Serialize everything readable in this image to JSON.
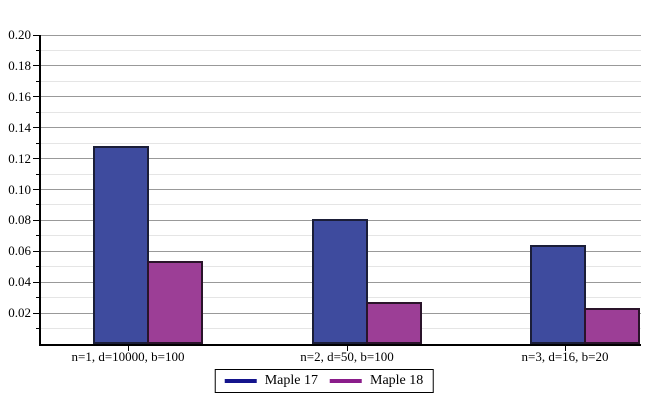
{
  "chart_data": {
    "type": "bar",
    "title": "",
    "xlabel": "",
    "ylabel": "",
    "categories": [
      "n=1, d=10000, b=100",
      "n=2, d=50, b=100",
      "n=3, d=16, b=20"
    ],
    "series": [
      {
        "name": "Maple 17",
        "values": [
          0.128,
          0.081,
          0.064
        ],
        "fill_color": "#3e4b9e",
        "edge_color": "#1b1e38",
        "legend_color": "#14148c"
      },
      {
        "name": "Maple 18",
        "values": [
          0.054,
          0.027,
          0.023
        ],
        "fill_color": "#9c3e96",
        "edge_color": "#2a142a",
        "legend_color": "#8a1d8a"
      }
    ],
    "ylim": [
      0,
      0.2
    ],
    "y_major_step": 0.02,
    "y_minor_step": 0.01,
    "y_tick_labels": [
      "0.02",
      "0.04",
      "0.06",
      "0.08",
      "0.10",
      "0.12",
      "0.14",
      "0.16",
      "0.18",
      "0.20"
    ],
    "grid": {
      "show": true,
      "major_color": "#999999",
      "minor_color": "#e5e5e5"
    },
    "axis_color": "#000000",
    "background_color": "#ffffff",
    "legend_position": "bottom-center"
  }
}
